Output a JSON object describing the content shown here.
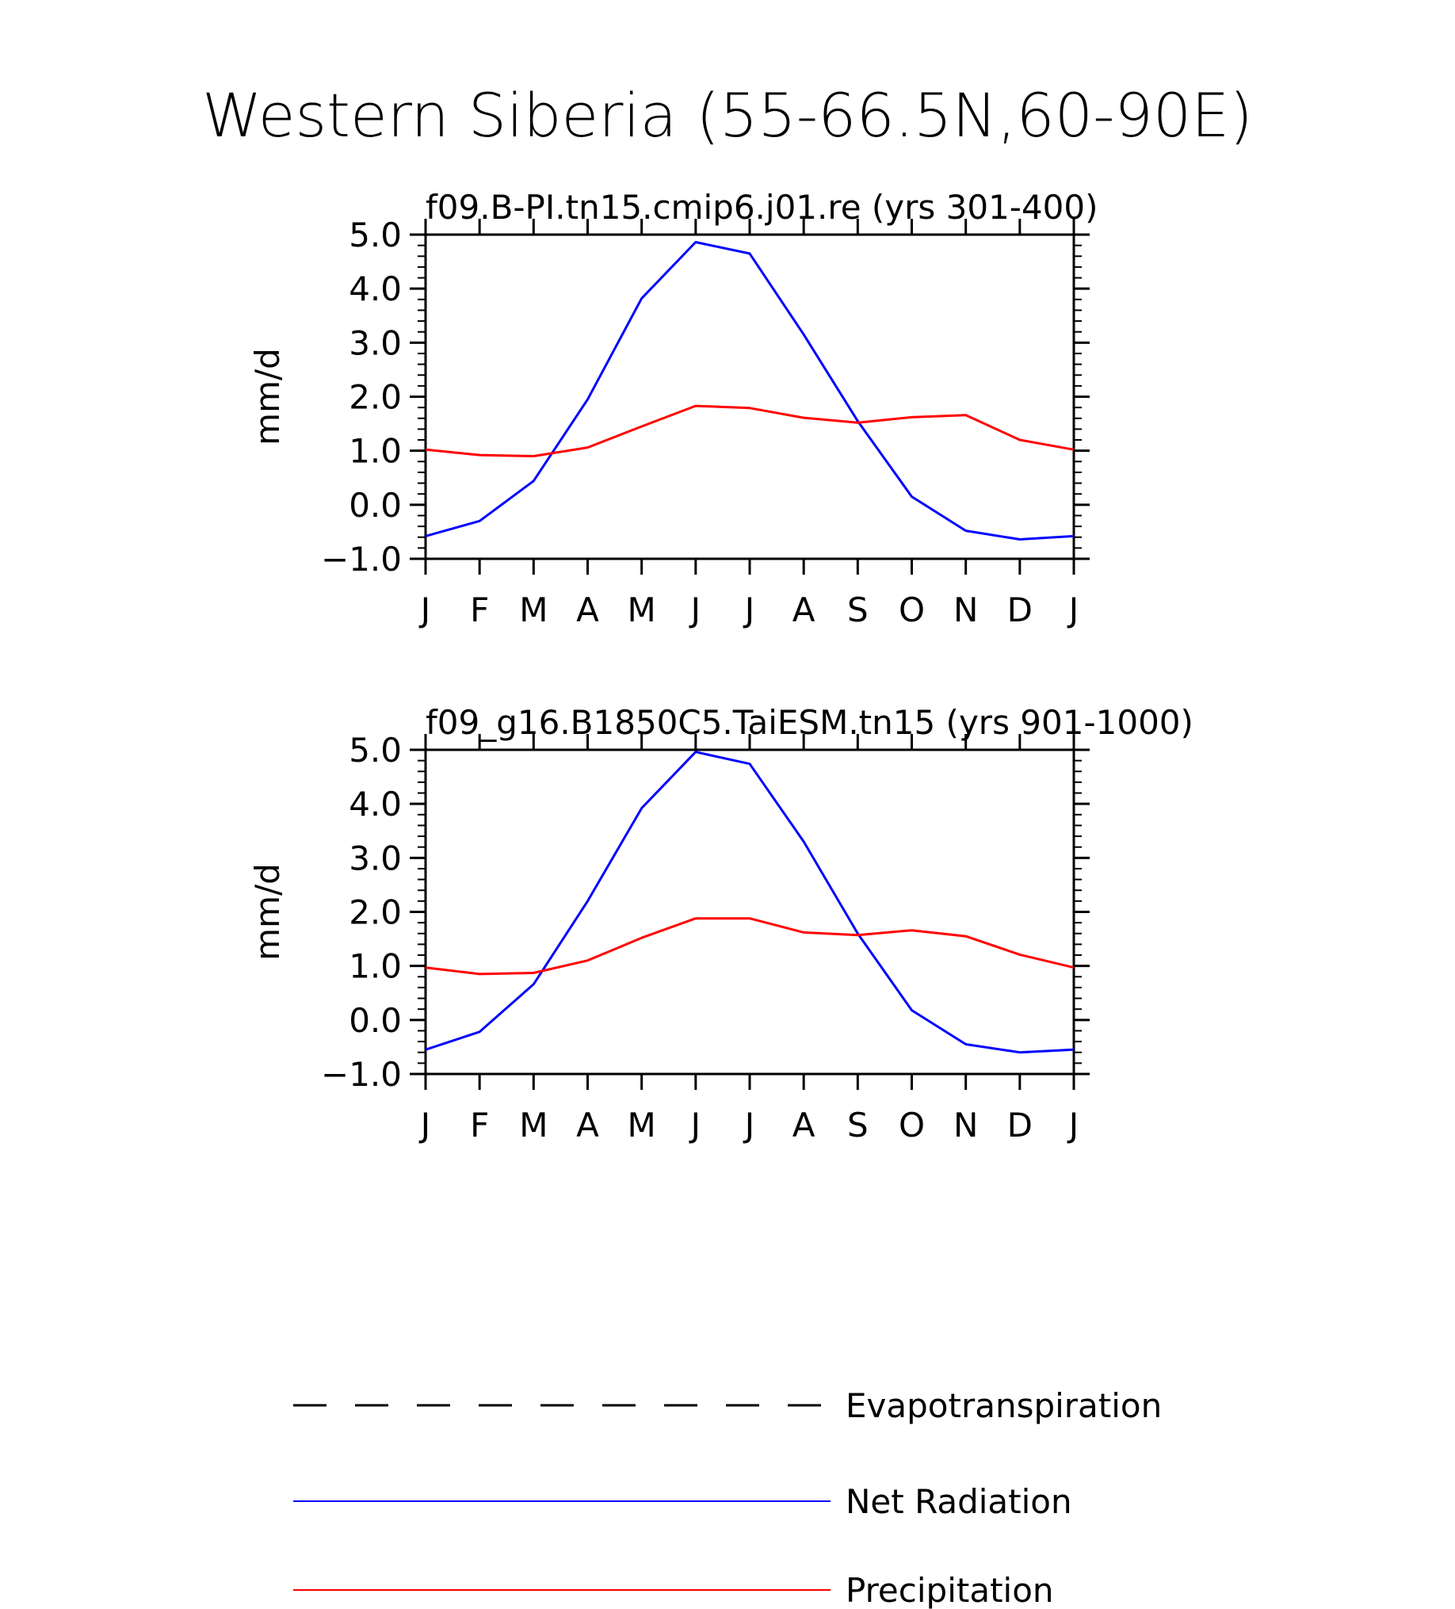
{
  "figure": {
    "title": "Western Siberia (55-66.5N,60-90E)"
  },
  "chart_data": [
    {
      "type": "line",
      "title": "f09.B-PI.tn15.cmip6.j01.re (yrs 301-400)",
      "xlabel": "",
      "ylabel": "mm/d",
      "categories": [
        "J",
        "F",
        "M",
        "A",
        "M",
        "J",
        "J",
        "A",
        "S",
        "O",
        "N",
        "D",
        "J"
      ],
      "ylim": [
        -1.0,
        5.0
      ],
      "yticks": [
        "5.0",
        "4.0",
        "3.0",
        "2.0",
        "1.0",
        "0.0",
        "-1.0"
      ],
      "series": [
        {
          "name": "Net Radiation",
          "color": "#0000ff",
          "values": [
            -0.58,
            -0.3,
            0.44,
            1.95,
            3.82,
            4.86,
            4.65,
            3.15,
            1.55,
            0.15,
            -0.48,
            -0.64,
            -0.58
          ]
        },
        {
          "name": "Precipitation",
          "color": "#ff0000",
          "values": [
            1.02,
            0.92,
            0.9,
            1.06,
            1.45,
            1.83,
            1.79,
            1.61,
            1.52,
            1.62,
            1.66,
            1.2,
            1.02
          ]
        }
      ]
    },
    {
      "type": "line",
      "title": "f09_g16.B1850C5.TaiESM.tn15 (yrs 901-1000)",
      "xlabel": "",
      "ylabel": "mm/d",
      "categories": [
        "J",
        "F",
        "M",
        "A",
        "M",
        "J",
        "J",
        "A",
        "S",
        "O",
        "N",
        "D",
        "J"
      ],
      "ylim": [
        -1.0,
        5.0
      ],
      "yticks": [
        "5.0",
        "4.0",
        "3.0",
        "2.0",
        "1.0",
        "0.0",
        "-1.0"
      ],
      "series": [
        {
          "name": "Net Radiation",
          "color": "#0000ff",
          "values": [
            -0.55,
            -0.22,
            0.66,
            2.2,
            3.92,
            4.96,
            4.74,
            3.3,
            1.6,
            0.18,
            -0.45,
            -0.6,
            -0.55
          ]
        },
        {
          "name": "Precipitation",
          "color": "#ff0000",
          "values": [
            0.97,
            0.85,
            0.87,
            1.1,
            1.52,
            1.88,
            1.88,
            1.62,
            1.57,
            1.66,
            1.55,
            1.21,
            0.97
          ]
        }
      ]
    }
  ],
  "legend": {
    "placement": "bottom",
    "items": [
      {
        "label": "Evapotranspiration",
        "color": "#000000",
        "style": "dashed"
      },
      {
        "label": "Net Radiation",
        "color": "#0000ff",
        "style": "solid"
      },
      {
        "label": "Precipitation",
        "color": "#ff0000",
        "style": "solid"
      }
    ]
  }
}
